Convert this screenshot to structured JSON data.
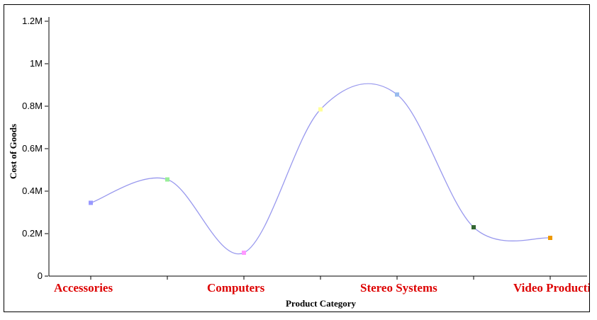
{
  "chart_data": {
    "type": "line",
    "smooth": true,
    "title": "",
    "xlabel": "Product Category",
    "ylabel": "Cost of Goods",
    "categories": [
      "Accessories",
      "",
      "Computers",
      "",
      "Stereo Systems",
      "",
      "Video Production"
    ],
    "category_labels_shown": [
      "Accessories",
      "Computers",
      "Stereo Systems",
      "Video Production"
    ],
    "series": [
      {
        "values": [
          345000,
          455000,
          110000,
          785000,
          855000,
          230000,
          180000
        ],
        "line_color": "#9999ee",
        "point_colors": [
          "#9999ff",
          "#99ee99",
          "#ff99ff",
          "#ffff99",
          "#99bbee",
          "#336633",
          "#ee9900"
        ]
      }
    ],
    "yticks": [
      {
        "value": 0,
        "label": "0"
      },
      {
        "value": 200000,
        "label": "0.2M"
      },
      {
        "value": 400000,
        "label": "0.4M"
      },
      {
        "value": 600000,
        "label": "0.6M"
      },
      {
        "value": 800000,
        "label": "0.8M"
      },
      {
        "value": 1000000,
        "label": "1M"
      },
      {
        "value": 1200000,
        "label": "1.2M"
      }
    ],
    "ylim": [
      0,
      1200000
    ],
    "grid": false,
    "legend": "none",
    "category_label_color": "#dd0000"
  }
}
